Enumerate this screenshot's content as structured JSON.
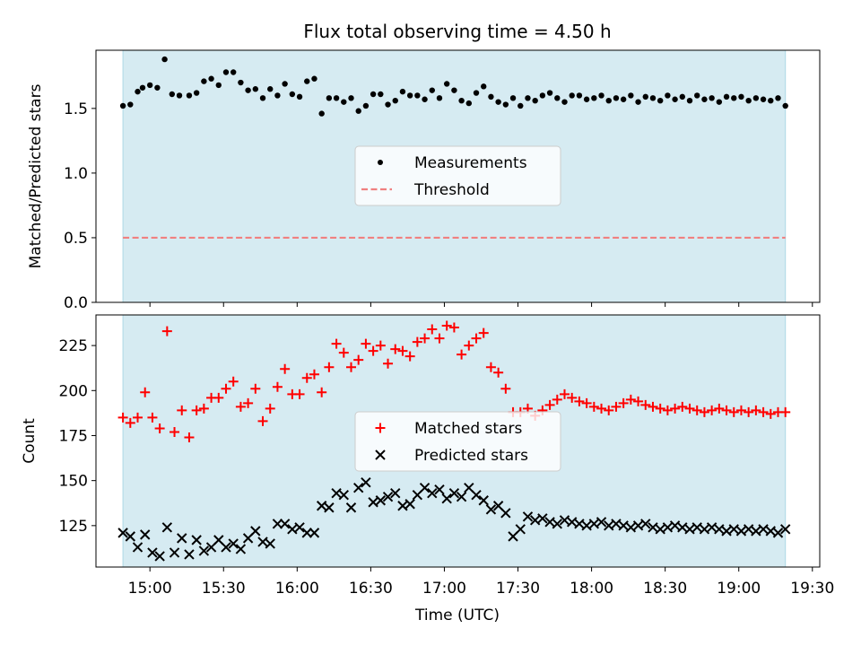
{
  "title": "Flux total observing time = 4.50 h",
  "xlabel": "Time (UTC)",
  "x_ticks": [
    "15:00",
    "15:30",
    "16:00",
    "16:30",
    "17:00",
    "17:30",
    "18:00",
    "18:30",
    "19:00",
    "19:30"
  ],
  "colors": {
    "shade": "#add8e6",
    "measurements": "#000000",
    "threshold": "#f08080",
    "matched": "#ff0000",
    "predicted": "#000000"
  },
  "chart_data": [
    {
      "type": "scatter",
      "title": "Flux total observing time = 4.50 h",
      "ylabel": "Matched/Predicted stars",
      "xlim": [
        "14:38",
        "19:33"
      ],
      "ylim": [
        0,
        1.95
      ],
      "y_ticks": [
        "0.0",
        "0.5",
        "1.0",
        "1.5"
      ],
      "shaded_span": [
        "14:49",
        "19:19"
      ],
      "threshold": 0.5,
      "legend": {
        "placement": "center",
        "entries": [
          "Measurements",
          "Threshold"
        ]
      },
      "series": [
        {
          "name": "Measurements",
          "marker": "dot",
          "x": [
            "14:49",
            "14:52",
            "14:55",
            "14:57",
            "15:00",
            "15:03",
            "15:06",
            "15:09",
            "15:12",
            "15:16",
            "15:19",
            "15:22",
            "15:25",
            "15:28",
            "15:31",
            "15:34",
            "15:37",
            "15:40",
            "15:43",
            "15:46",
            "15:49",
            "15:52",
            "15:55",
            "15:58",
            "16:01",
            "16:04",
            "16:07",
            "16:10",
            "16:13",
            "16:16",
            "16:19",
            "16:22",
            "16:25",
            "16:28",
            "16:31",
            "16:34",
            "16:37",
            "16:40",
            "16:43",
            "16:46",
            "16:49",
            "16:52",
            "16:55",
            "16:58",
            "17:01",
            "17:04",
            "17:07",
            "17:10",
            "17:13",
            "17:16",
            "17:19",
            "17:22",
            "17:25",
            "17:28",
            "17:31",
            "17:34",
            "17:37",
            "17:40",
            "17:43",
            "17:46",
            "17:49",
            "17:52",
            "17:55",
            "17:58",
            "18:01",
            "18:04",
            "18:07",
            "18:10",
            "18:13",
            "18:16",
            "18:19",
            "18:22",
            "18:25",
            "18:28",
            "18:31",
            "18:34",
            "18:37",
            "18:40",
            "18:43",
            "18:46",
            "18:49",
            "18:52",
            "18:55",
            "18:58",
            "19:01",
            "19:04",
            "19:07",
            "19:10",
            "19:13",
            "19:16",
            "19:19"
          ],
          "y": [
            1.52,
            1.53,
            1.63,
            1.66,
            1.68,
            1.66,
            1.88,
            1.61,
            1.6,
            1.6,
            1.62,
            1.71,
            1.73,
            1.68,
            1.78,
            1.78,
            1.7,
            1.64,
            1.65,
            1.58,
            1.65,
            1.6,
            1.69,
            1.61,
            1.59,
            1.71,
            1.73,
            1.46,
            1.58,
            1.58,
            1.55,
            1.58,
            1.48,
            1.52,
            1.61,
            1.61,
            1.53,
            1.56,
            1.63,
            1.6,
            1.6,
            1.57,
            1.64,
            1.58,
            1.69,
            1.64,
            1.56,
            1.54,
            1.62,
            1.67,
            1.59,
            1.55,
            1.53,
            1.58,
            1.52,
            1.58,
            1.56,
            1.6,
            1.62,
            1.58,
            1.55,
            1.6,
            1.6,
            1.57,
            1.58,
            1.6,
            1.56,
            1.58,
            1.57,
            1.6,
            1.55,
            1.59,
            1.58,
            1.56,
            1.6,
            1.57,
            1.59,
            1.56,
            1.6,
            1.57,
            1.58,
            1.55,
            1.59,
            1.58,
            1.59,
            1.56,
            1.58,
            1.57,
            1.56,
            1.58,
            1.52
          ]
        }
      ]
    },
    {
      "type": "scatter",
      "ylabel": "Count",
      "xlabel": "Time (UTC)",
      "xlim": [
        "14:38",
        "19:33"
      ],
      "ylim": [
        102,
        242
      ],
      "y_ticks": [
        "125",
        "150",
        "175",
        "200",
        "225"
      ],
      "shaded_span": [
        "14:49",
        "19:19"
      ],
      "legend": {
        "placement": "center",
        "entries": [
          "Matched stars",
          "Predicted stars"
        ]
      },
      "series": [
        {
          "name": "Matched stars",
          "marker": "plus",
          "x": [
            "14:49",
            "14:52",
            "14:55",
            "14:58",
            "15:01",
            "15:04",
            "15:07",
            "15:10",
            "15:13",
            "15:16",
            "15:19",
            "15:22",
            "15:25",
            "15:28",
            "15:31",
            "15:34",
            "15:37",
            "15:40",
            "15:43",
            "15:46",
            "15:49",
            "15:52",
            "15:55",
            "15:58",
            "16:01",
            "16:04",
            "16:07",
            "16:10",
            "16:13",
            "16:16",
            "16:19",
            "16:22",
            "16:25",
            "16:28",
            "16:31",
            "16:34",
            "16:37",
            "16:40",
            "16:43",
            "16:46",
            "16:49",
            "16:52",
            "16:55",
            "16:58",
            "17:01",
            "17:04",
            "17:07",
            "17:10",
            "17:13",
            "17:16",
            "17:19",
            "17:22",
            "17:25",
            "17:28",
            "17:31",
            "17:34",
            "17:37",
            "17:40",
            "17:43",
            "17:46",
            "17:49",
            "17:52",
            "17:55",
            "17:58",
            "18:01",
            "18:04",
            "18:07",
            "18:10",
            "18:13",
            "18:16",
            "18:19",
            "18:22",
            "18:25",
            "18:28",
            "18:31",
            "18:34",
            "18:37",
            "18:40",
            "18:43",
            "18:46",
            "18:49",
            "18:52",
            "18:55",
            "18:58",
            "19:01",
            "19:04",
            "19:07",
            "19:10",
            "19:13",
            "19:16",
            "19:19"
          ],
          "y": [
            185,
            182,
            185,
            199,
            185,
            179,
            233,
            177,
            189,
            174,
            189,
            190,
            196,
            196,
            201,
            205,
            191,
            193,
            201,
            183,
            190,
            202,
            212,
            198,
            198,
            207,
            209,
            199,
            213,
            226,
            221,
            213,
            217,
            226,
            222,
            225,
            215,
            223,
            222,
            219,
            227,
            229,
            234,
            229,
            236,
            235,
            220,
            225,
            229,
            232,
            213,
            210,
            201,
            188,
            188,
            190,
            186,
            189,
            192,
            195,
            198,
            196,
            194,
            193,
            191,
            190,
            189,
            191,
            193,
            195,
            194,
            192,
            191,
            190,
            189,
            190,
            191,
            190,
            189,
            188,
            189,
            190,
            189,
            188,
            189,
            188,
            189,
            188,
            187,
            188,
            188
          ]
        },
        {
          "name": "Predicted stars",
          "marker": "x",
          "x": [
            "14:49",
            "14:52",
            "14:55",
            "14:58",
            "15:01",
            "15:04",
            "15:07",
            "15:10",
            "15:13",
            "15:16",
            "15:19",
            "15:22",
            "15:25",
            "15:28",
            "15:31",
            "15:34",
            "15:37",
            "15:40",
            "15:43",
            "15:46",
            "15:49",
            "15:52",
            "15:55",
            "15:58",
            "16:01",
            "16:04",
            "16:07",
            "16:10",
            "16:13",
            "16:16",
            "16:19",
            "16:22",
            "16:25",
            "16:28",
            "16:31",
            "16:34",
            "16:37",
            "16:40",
            "16:43",
            "16:46",
            "16:49",
            "16:52",
            "16:55",
            "16:58",
            "17:01",
            "17:04",
            "17:07",
            "17:10",
            "17:13",
            "17:16",
            "17:19",
            "17:22",
            "17:25",
            "17:28",
            "17:31",
            "17:34",
            "17:37",
            "17:40",
            "17:43",
            "17:46",
            "17:49",
            "17:52",
            "17:55",
            "17:58",
            "18:01",
            "18:04",
            "18:07",
            "18:10",
            "18:13",
            "18:16",
            "18:19",
            "18:22",
            "18:25",
            "18:28",
            "18:31",
            "18:34",
            "18:37",
            "18:40",
            "18:43",
            "18:46",
            "18:49",
            "18:52",
            "18:55",
            "18:58",
            "19:01",
            "19:04",
            "19:07",
            "19:10",
            "19:13",
            "19:16",
            "19:19"
          ],
          "y": [
            121,
            119,
            113,
            120,
            110,
            108,
            124,
            110,
            118,
            109,
            117,
            111,
            113,
            117,
            113,
            115,
            112,
            118,
            122,
            116,
            115,
            126,
            126,
            123,
            124,
            121,
            121,
            136,
            135,
            143,
            142,
            135,
            146,
            149,
            138,
            139,
            141,
            143,
            136,
            137,
            142,
            146,
            143,
            145,
            140,
            143,
            141,
            146,
            142,
            139,
            134,
            136,
            132,
            119,
            123,
            130,
            128,
            129,
            127,
            126,
            128,
            127,
            126,
            125,
            126,
            127,
            125,
            126,
            125,
            124,
            125,
            126,
            124,
            123,
            124,
            125,
            124,
            123,
            124,
            123,
            124,
            123,
            122,
            123,
            122,
            123,
            122,
            123,
            122,
            121,
            123
          ]
        }
      ]
    }
  ]
}
